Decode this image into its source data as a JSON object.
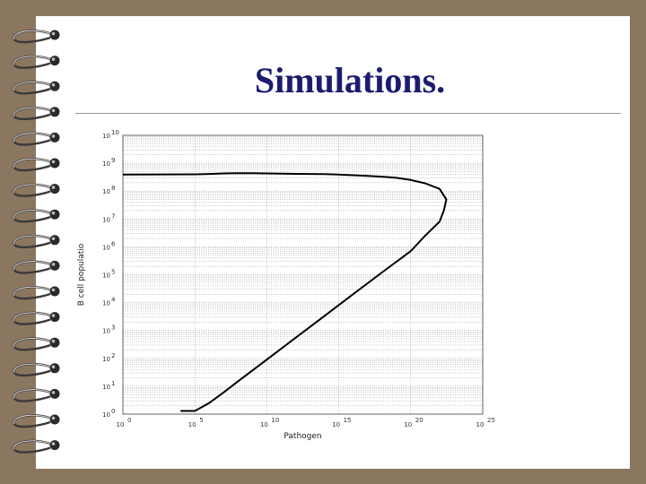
{
  "slide": {
    "title": "Simulations."
  },
  "chart_data": {
    "type": "line",
    "title": "",
    "xlabel": "Pathogen",
    "ylabel": "B cell populatio",
    "x_scale": "log",
    "y_scale": "log",
    "xlim": [
      1,
      1e+25
    ],
    "ylim": [
      1,
      10000000000.0
    ],
    "grid": true,
    "x_ticks": [
      {
        "base": "10",
        "exp": "0",
        "value": 1
      },
      {
        "base": "10",
        "exp": "5",
        "value": 100000.0
      },
      {
        "base": "10",
        "exp": "10",
        "value": 10000000000.0
      },
      {
        "base": "10",
        "exp": "15",
        "value": 1000000000000000.0
      },
      {
        "base": "10",
        "exp": "20",
        "value": 1e+20
      },
      {
        "base": "10",
        "exp": "25",
        "value": 1e+25
      }
    ],
    "y_ticks": [
      {
        "base": "10",
        "exp": "0",
        "value": 1
      },
      {
        "base": "10",
        "exp": "1",
        "value": 10
      },
      {
        "base": "10",
        "exp": "2",
        "value": 100
      },
      {
        "base": "10",
        "exp": "3",
        "value": 1000
      },
      {
        "base": "10",
        "exp": "4",
        "value": 10000.0
      },
      {
        "base": "10",
        "exp": "5",
        "value": 100000.0
      },
      {
        "base": "10",
        "exp": "6",
        "value": 1000000.0
      },
      {
        "base": "10",
        "exp": "7",
        "value": 10000000.0
      },
      {
        "base": "10",
        "exp": "8",
        "value": 100000000.0
      },
      {
        "base": "10",
        "exp": "9",
        "value": 1000000000.0
      },
      {
        "base": "10",
        "exp": "10",
        "value": 10000000000.0
      }
    ],
    "series": [
      {
        "x": [
          1,
          100000.0,
          1000000.0,
          10000000.0,
          100000000.0,
          1000000000.0,
          10000000000.0,
          100000000000.0,
          1000000000000.0,
          10000000000000.0,
          100000000000000.0,
          1000000000000000.0,
          1e+16,
          1e+17,
          1e+18,
          1e+19,
          1e+20,
          1e+21,
          1e+22,
          3e+22,
          2e+22,
          1e+22,
          1e+21,
          1e+20,
          1e+18,
          1e+16,
          100000000000000.0,
          1000000000000.0,
          10000000000.0,
          100000000.0,
          10000000.0,
          1000000.0,
          100000.0,
          10000.0
        ],
        "y": [
          390000000.0,
          400000000.0,
          410000000.0,
          430000000.0,
          440000000.0,
          440000000.0,
          430000000.0,
          420000000.0,
          415000000.0,
          410000000.0,
          405000000.0,
          390000000.0,
          370000000.0,
          350000000.0,
          330000000.0,
          300000000.0,
          250000000.0,
          190000000.0,
          120000000.0,
          50000000.0,
          20000000.0,
          8000000.0,
          2500000.0,
          700000.0,
          120000.0,
          20000.0,
          3300.0,
          550.0,
          90,
          15,
          6,
          2.5,
          1.3,
          1.3
        ]
      }
    ]
  }
}
